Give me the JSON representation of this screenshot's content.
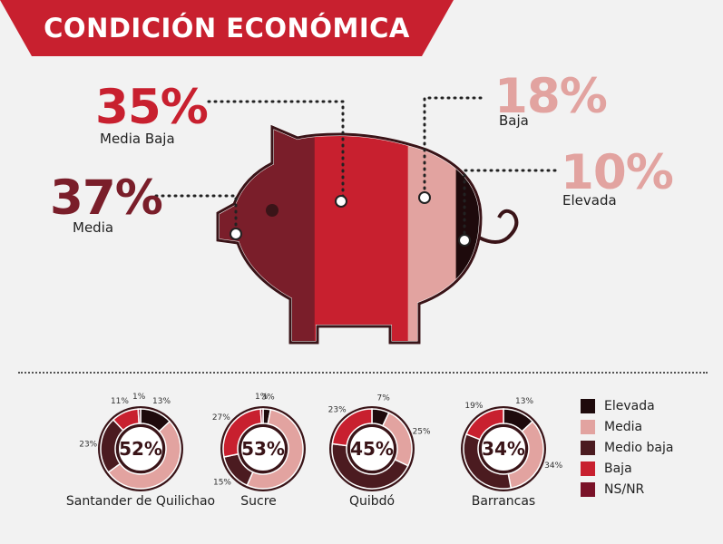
{
  "title": "CONDICIÓN ECONÓMICA",
  "colors": {
    "Elevada": "#1e0a0c",
    "Media": "#e2a3a0",
    "Medio baja": "#4b1b20",
    "Baja": "#c8202f",
    "NS/NR": "#7a1228",
    "pig_media": "#7a1e2a",
    "pig_media_baja": "#c8202f",
    "pig_baja": "#e2a3a0",
    "pig_elevada": "#1e0a0c",
    "banner": "#c8202f"
  },
  "pig": {
    "labels": [
      {
        "value": "35%",
        "name": "Media Baja"
      },
      {
        "value": "37%",
        "name": "Media"
      },
      {
        "value": "18%",
        "name": "Baja"
      },
      {
        "value": "10%",
        "name": "Elevada"
      }
    ]
  },
  "chart_data": [
    {
      "type": "bar",
      "description_key": "pig",
      "categories": [
        "Media",
        "Media Baja",
        "Baja",
        "Elevada"
      ],
      "values": [
        37,
        35,
        18,
        10
      ]
    },
    {
      "type": "pie",
      "name": "Santander de Quilichao",
      "center": "52%",
      "slices": [
        {
          "label": "Elevada",
          "value": 13,
          "text": "13%"
        },
        {
          "label": "Media",
          "value": 52,
          "text": ""
        },
        {
          "label": "Medio baja",
          "value": 23,
          "text": "23%"
        },
        {
          "label": "Baja",
          "value": 11,
          "text": "11%"
        },
        {
          "label": "NS/NR",
          "value": 1,
          "text": "1%"
        }
      ]
    },
    {
      "type": "pie",
      "name": "Sucre",
      "center": "53%",
      "slices": [
        {
          "label": "Elevada",
          "value": 3,
          "text": "3%"
        },
        {
          "label": "Media",
          "value": 53,
          "text": ""
        },
        {
          "label": "Medio baja",
          "value": 15,
          "text": "15%"
        },
        {
          "label": "Baja",
          "value": 27,
          "text": "27%"
        },
        {
          "label": "NS/NR",
          "value": 1,
          "text": "1%"
        }
      ]
    },
    {
      "type": "pie",
      "name": "Quibdó",
      "center": "45%",
      "slices": [
        {
          "label": "Elevada",
          "value": 7,
          "text": "7%"
        },
        {
          "label": "Media",
          "value": 25,
          "text": "25%"
        },
        {
          "label": "Medio baja",
          "value": 45,
          "text": ""
        },
        {
          "label": "Baja",
          "value": 23,
          "text": "23%"
        }
      ]
    },
    {
      "type": "pie",
      "name": "Barrancas",
      "center": "34%",
      "slices": [
        {
          "label": "Elevada",
          "value": 13,
          "text": "13%"
        },
        {
          "label": "Media",
          "value": 34,
          "text": "34%"
        },
        {
          "label": "Medio baja",
          "value": 34,
          "text": ""
        },
        {
          "label": "Baja",
          "value": 19,
          "text": "19%"
        }
      ]
    }
  ],
  "legend": [
    "Elevada",
    "Media",
    "Medio baja",
    "Baja",
    "NS/NR"
  ]
}
